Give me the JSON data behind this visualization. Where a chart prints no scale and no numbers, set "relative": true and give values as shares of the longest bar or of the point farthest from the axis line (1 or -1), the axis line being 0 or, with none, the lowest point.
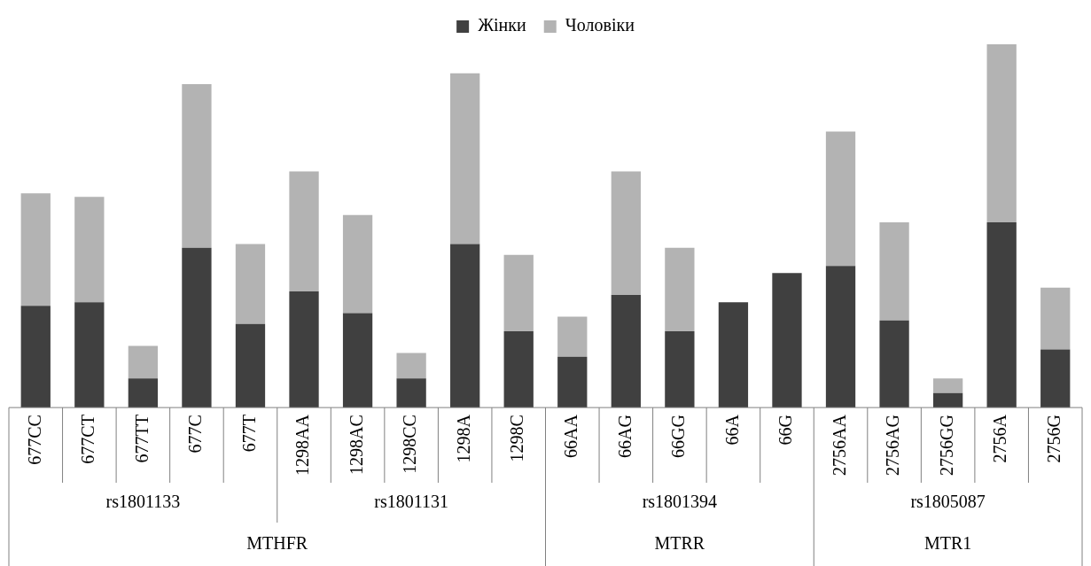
{
  "chart_data": {
    "type": "bar",
    "stacked": true,
    "relative": true,
    "legend": "top",
    "grid": false,
    "categories": [
      "677CC",
      "677CT",
      "677TT",
      "677C",
      "677T",
      "1298AA",
      "1298AC",
      "1298CC",
      "1298A",
      "1298C",
      "66AA",
      "66AG",
      "66GG",
      "66A",
      "66G",
      "2756AA",
      "2756AG",
      "2756GG",
      "2756A",
      "2756G"
    ],
    "series": [
      {
        "name": "Жінки",
        "color": "#404040",
        "values": [
          0.28,
          0.29,
          0.08,
          0.44,
          0.23,
          0.32,
          0.26,
          0.08,
          0.45,
          0.21,
          0.14,
          0.31,
          0.21,
          0.29,
          0.37,
          0.39,
          0.24,
          0.04,
          0.51,
          0.16
        ]
      },
      {
        "name": "Чоловіки",
        "color": "#b3b3b3",
        "values": [
          0.31,
          0.29,
          0.09,
          0.45,
          0.22,
          0.33,
          0.27,
          0.07,
          0.47,
          0.21,
          0.11,
          0.34,
          0.23,
          0,
          0,
          0.37,
          0.27,
          0.04,
          0.49,
          0.17
        ]
      }
    ],
    "annotations": [
      "rs1801133",
      "rs1801131",
      "rs1801394",
      "rs1805087",
      "MTHFR",
      "MTRR",
      "MTR1"
    ]
  }
}
